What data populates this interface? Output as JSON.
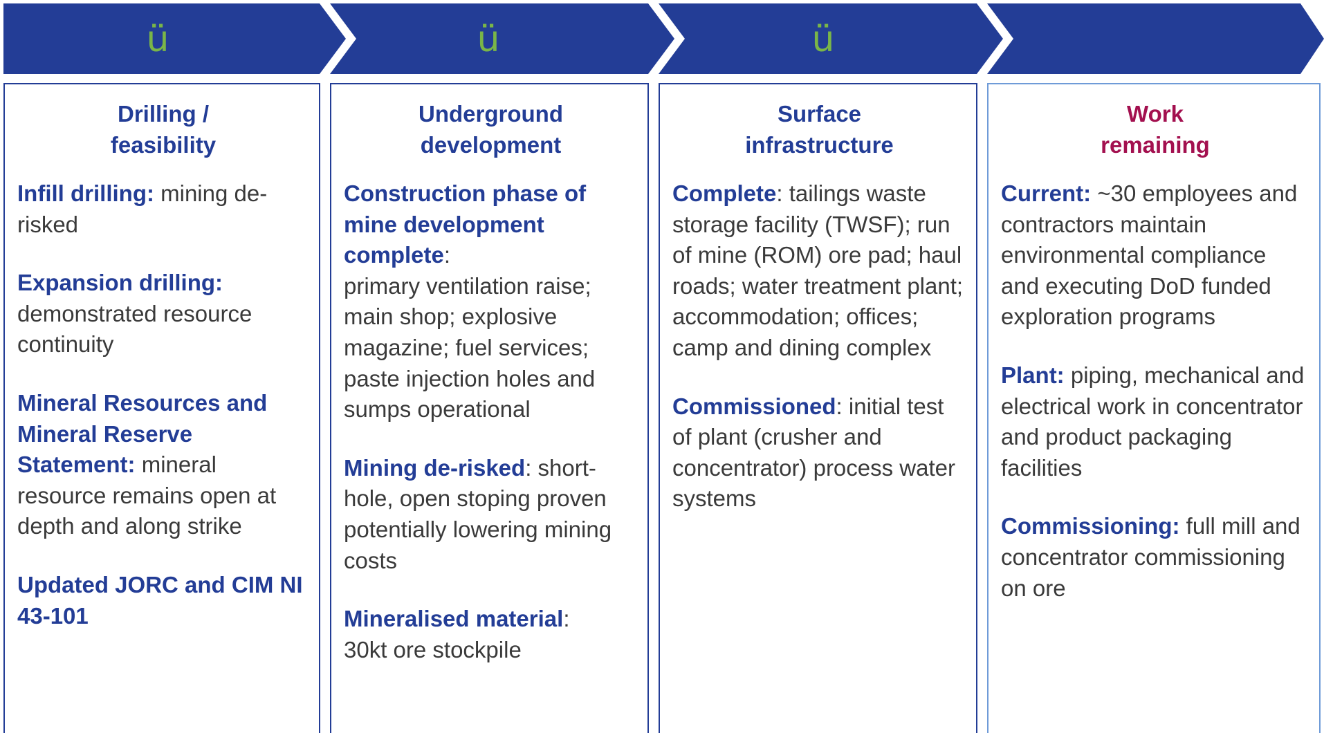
{
  "columns": [
    {
      "check": "ü",
      "title": [
        "Drilling /",
        "feasibility"
      ],
      "items": [
        {
          "bold": "Infill drilling:",
          "text": " mining de-risked"
        },
        {
          "bold": "Expansion drilling:",
          "text": " demonstrated resource continuity"
        },
        {
          "bold": "Mineral Resources and Mineral Reserve Statement:",
          "text": " mineral resource remains open at depth and along strike"
        },
        {
          "bold": "Updated JORC and CIM NI 43-101",
          "text": ""
        }
      ]
    },
    {
      "check": "ü",
      "title": [
        "Underground",
        "development"
      ],
      "items": [
        {
          "bold": "Construction phase of mine development complete",
          "text": ":\nprimary ventilation raise; main shop; explosive magazine; fuel services; paste injection holes and sumps operational"
        },
        {
          "bold": "Mining de-risked",
          "text": ": short-hole, open stoping proven potentially lowering mining costs"
        },
        {
          "bold": "Mineralised material",
          "text": ":\n30kt ore stockpile"
        }
      ]
    },
    {
      "check": "ü",
      "title": [
        "Surface",
        "infrastructure"
      ],
      "items": [
        {
          "bold": "Complete",
          "text": ": tailings waste storage facility (TWSF); run of mine (ROM) ore pad; haul roads; water treatment plant; accommodation; offices; camp and dining complex"
        },
        {
          "bold": "Commissioned",
          "text": ": initial test of plant (crusher and concentrator) process water systems"
        }
      ]
    },
    {
      "check": "",
      "title": [
        "Work",
        "remaining"
      ],
      "items": [
        {
          "bold": "Current:",
          "text": " ~30 employees and contractors maintain environmental compliance and executing DoD funded exploration programs"
        },
        {
          "bold": "Plant:",
          "text": " piping, mechanical and electrical work in concentrator and product packaging facilities"
        },
        {
          "bold": "Commissioning:",
          "text": " full mill and concentrator commissioning on ore"
        }
      ]
    }
  ]
}
